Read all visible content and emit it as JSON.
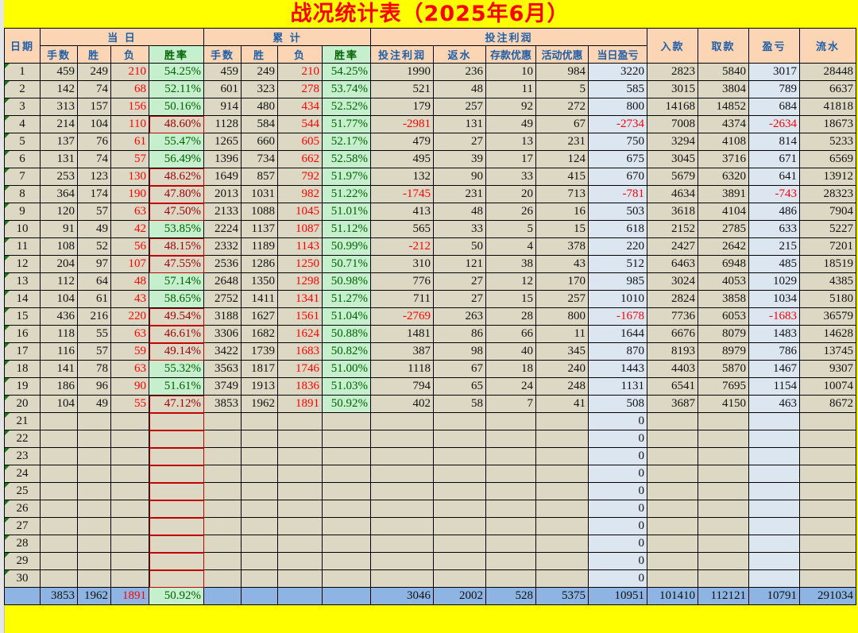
{
  "title": "战况统计表（2025年6月）",
  "headers": {
    "date": "日期",
    "daily_group": "当 日",
    "cumulative_group": "累  计",
    "profit_group": "投注利润",
    "deposit": "入款",
    "withdraw": "取款",
    "pnl": "盈亏",
    "turnover": "流水",
    "sub": [
      "手数",
      "胜",
      "负",
      "胜率",
      "手数",
      "胜",
      "负",
      "胜率",
      "投注利润",
      "返水",
      "存款优惠",
      "活动优惠",
      "当日盈亏"
    ]
  },
  "colors": {
    "title": "#ff0000",
    "header_bg": "#fcd5b4",
    "header_text": "#1f5fa8",
    "win_bg": "#c6efce",
    "win_text": "#006100",
    "loss_text": "#9c0006",
    "negative": "#ff0000",
    "total_bg": "#8db4e2",
    "highlight_bg": "#dce6f1",
    "cell_bg": "#ddd8c4"
  },
  "rows": [
    {
      "day": "1",
      "v": [
        "459",
        "249",
        "210",
        "54.25%",
        "459",
        "249",
        "210",
        "54.25%",
        "1990",
        "236",
        "10",
        "984",
        "3220",
        "2823",
        "5840",
        "3017",
        "28448"
      ]
    },
    {
      "day": "2",
      "v": [
        "142",
        "74",
        "68",
        "52.11%",
        "601",
        "323",
        "278",
        "53.74%",
        "521",
        "48",
        "11",
        "5",
        "585",
        "3015",
        "3804",
        "789",
        "6637"
      ]
    },
    {
      "day": "3",
      "v": [
        "313",
        "157",
        "156",
        "50.16%",
        "914",
        "480",
        "434",
        "52.52%",
        "179",
        "257",
        "92",
        "272",
        "800",
        "14168",
        "14852",
        "684",
        "41818"
      ]
    },
    {
      "day": "4",
      "v": [
        "214",
        "104",
        "110",
        "48.60%",
        "1128",
        "584",
        "544",
        "51.77%",
        "-2981",
        "131",
        "49",
        "67",
        "-2734",
        "7008",
        "4374",
        "-2634",
        "18673"
      ]
    },
    {
      "day": "5",
      "v": [
        "137",
        "76",
        "61",
        "55.47%",
        "1265",
        "660",
        "605",
        "52.17%",
        "479",
        "27",
        "13",
        "231",
        "750",
        "3294",
        "4108",
        "814",
        "5233"
      ]
    },
    {
      "day": "6",
      "v": [
        "131",
        "74",
        "57",
        "56.49%",
        "1396",
        "734",
        "662",
        "52.58%",
        "495",
        "39",
        "17",
        "124",
        "675",
        "3045",
        "3716",
        "671",
        "6569"
      ]
    },
    {
      "day": "7",
      "v": [
        "253",
        "123",
        "130",
        "48.62%",
        "1649",
        "857",
        "792",
        "51.97%",
        "132",
        "90",
        "33",
        "415",
        "670",
        "5679",
        "6320",
        "641",
        "13912"
      ]
    },
    {
      "day": "8",
      "v": [
        "364",
        "174",
        "190",
        "47.80%",
        "2013",
        "1031",
        "982",
        "51.22%",
        "-1745",
        "231",
        "20",
        "713",
        "-781",
        "4634",
        "3891",
        "-743",
        "28323"
      ]
    },
    {
      "day": "9",
      "v": [
        "120",
        "57",
        "63",
        "47.50%",
        "2133",
        "1088",
        "1045",
        "51.01%",
        "413",
        "48",
        "26",
        "16",
        "503",
        "3618",
        "4104",
        "486",
        "7904"
      ]
    },
    {
      "day": "10",
      "v": [
        "91",
        "49",
        "42",
        "53.85%",
        "2224",
        "1137",
        "1087",
        "51.12%",
        "565",
        "33",
        "5",
        "15",
        "618",
        "2152",
        "2785",
        "633",
        "5227"
      ]
    },
    {
      "day": "11",
      "v": [
        "108",
        "52",
        "56",
        "48.15%",
        "2332",
        "1189",
        "1143",
        "50.99%",
        "-212",
        "50",
        "4",
        "378",
        "220",
        "2427",
        "2642",
        "215",
        "7201"
      ]
    },
    {
      "day": "12",
      "v": [
        "204",
        "97",
        "107",
        "47.55%",
        "2536",
        "1286",
        "1250",
        "50.71%",
        "310",
        "121",
        "38",
        "43",
        "512",
        "6463",
        "6948",
        "485",
        "18519"
      ]
    },
    {
      "day": "13",
      "v": [
        "112",
        "64",
        "48",
        "57.14%",
        "2648",
        "1350",
        "1298",
        "50.98%",
        "776",
        "27",
        "12",
        "170",
        "985",
        "3024",
        "4053",
        "1029",
        "4385"
      ]
    },
    {
      "day": "14",
      "v": [
        "104",
        "61",
        "43",
        "58.65%",
        "2752",
        "1411",
        "1341",
        "51.27%",
        "711",
        "27",
        "15",
        "257",
        "1010",
        "2824",
        "3858",
        "1034",
        "5180"
      ]
    },
    {
      "day": "15",
      "v": [
        "436",
        "216",
        "220",
        "49.54%",
        "3188",
        "1627",
        "1561",
        "51.04%",
        "-2769",
        "263",
        "28",
        "800",
        "-1678",
        "7736",
        "6053",
        "-1683",
        "36579"
      ]
    },
    {
      "day": "16",
      "v": [
        "118",
        "55",
        "63",
        "46.61%",
        "3306",
        "1682",
        "1624",
        "50.88%",
        "1481",
        "86",
        "66",
        "11",
        "1644",
        "6676",
        "8079",
        "1483",
        "14628"
      ]
    },
    {
      "day": "17",
      "v": [
        "116",
        "57",
        "59",
        "49.14%",
        "3422",
        "1739",
        "1683",
        "50.82%",
        "387",
        "98",
        "40",
        "345",
        "870",
        "8193",
        "8979",
        "786",
        "13745"
      ]
    },
    {
      "day": "18",
      "v": [
        "141",
        "78",
        "63",
        "55.32%",
        "3563",
        "1817",
        "1746",
        "51.00%",
        "1118",
        "67",
        "18",
        "240",
        "1443",
        "4403",
        "5870",
        "1467",
        "9307"
      ]
    },
    {
      "day": "19",
      "v": [
        "186",
        "96",
        "90",
        "51.61%",
        "3749",
        "1913",
        "1836",
        "51.03%",
        "794",
        "65",
        "24",
        "248",
        "1131",
        "6541",
        "7695",
        "1154",
        "10074"
      ]
    },
    {
      "day": "20",
      "v": [
        "104",
        "49",
        "55",
        "47.12%",
        "3853",
        "1962",
        "1891",
        "50.92%",
        "402",
        "58",
        "7",
        "41",
        "508",
        "3687",
        "4150",
        "463",
        "8672"
      ]
    },
    {
      "day": "21",
      "v": [
        "",
        "",
        "",
        "",
        "",
        "",
        "",
        "",
        "",
        "",
        "",
        "",
        "0",
        "",
        "",
        "",
        ""
      ]
    },
    {
      "day": "22",
      "v": [
        "",
        "",
        "",
        "",
        "",
        "",
        "",
        "",
        "",
        "",
        "",
        "",
        "0",
        "",
        "",
        "",
        ""
      ]
    },
    {
      "day": "23",
      "v": [
        "",
        "",
        "",
        "",
        "",
        "",
        "",
        "",
        "",
        "",
        "",
        "",
        "0",
        "",
        "",
        "",
        ""
      ]
    },
    {
      "day": "24",
      "v": [
        "",
        "",
        "",
        "",
        "",
        "",
        "",
        "",
        "",
        "",
        "",
        "",
        "0",
        "",
        "",
        "",
        ""
      ]
    },
    {
      "day": "25",
      "v": [
        "",
        "",
        "",
        "",
        "",
        "",
        "",
        "",
        "",
        "",
        "",
        "",
        "0",
        "",
        "",
        "",
        ""
      ]
    },
    {
      "day": "26",
      "v": [
        "",
        "",
        "",
        "",
        "",
        "",
        "",
        "",
        "",
        "",
        "",
        "",
        "0",
        "",
        "",
        "",
        ""
      ]
    },
    {
      "day": "27",
      "v": [
        "",
        "",
        "",
        "",
        "",
        "",
        "",
        "",
        "",
        "",
        "",
        "",
        "0",
        "",
        "",
        "",
        ""
      ]
    },
    {
      "day": "28",
      "v": [
        "",
        "",
        "",
        "",
        "",
        "",
        "",
        "",
        "",
        "",
        "",
        "",
        "0",
        "",
        "",
        "",
        ""
      ]
    },
    {
      "day": "29",
      "v": [
        "",
        "",
        "",
        "",
        "",
        "",
        "",
        "",
        "",
        "",
        "",
        "",
        "0",
        "",
        "",
        "",
        ""
      ]
    },
    {
      "day": "30",
      "v": [
        "",
        "",
        "",
        "",
        "",
        "",
        "",
        "",
        "",
        "",
        "",
        "",
        "0",
        "",
        "",
        "",
        ""
      ]
    }
  ],
  "total": {
    "day": "",
    "v": [
      "3853",
      "1962",
      "1891",
      "50.92%",
      "",
      "",
      "",
      "",
      "3046",
      "2002",
      "528",
      "5375",
      "10951",
      "101410",
      "112121",
      "10791",
      "291034"
    ]
  }
}
